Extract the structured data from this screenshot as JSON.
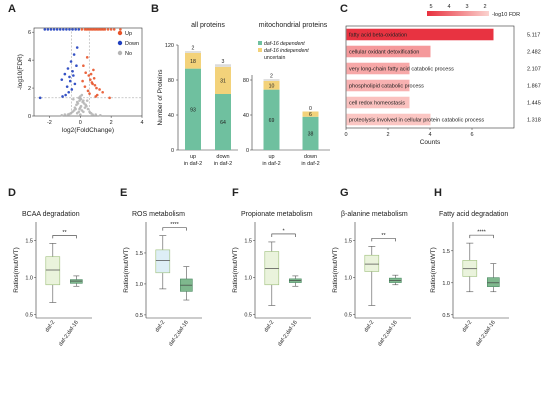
{
  "panels": {
    "A": "A",
    "B": "B",
    "C": "C",
    "D": "D",
    "E": "E",
    "F": "F",
    "G": "G",
    "H": "H"
  },
  "chart_data": [
    {
      "panel": "A",
      "type": "scatter",
      "title": "",
      "xlabel": "log2(FoldChange)",
      "ylabel": "-log10(FDR)",
      "xlim": [
        -3,
        4
      ],
      "ylim": [
        0,
        6.3
      ],
      "xticks": [
        "-2",
        "0",
        "2",
        "4"
      ],
      "yticks": [
        "0",
        "2",
        "4",
        "6"
      ],
      "legend_position": "top-right",
      "legend": [
        {
          "label": "Up",
          "color": "#e8542a"
        },
        {
          "label": "Down",
          "color": "#1f3fbf"
        },
        {
          "label": "No",
          "color": "#b5b5b5"
        }
      ],
      "series": [
        {
          "name": "Up",
          "color": "#e8542a",
          "x": [
            0.1,
            0.3,
            0.4,
            0.5,
            0.6,
            0.7,
            0.8,
            0.9,
            1.0,
            1.1,
            1.2,
            1.3,
            1.4,
            1.5,
            1.6,
            1.8,
            2.0,
            2.2,
            2.6,
            0.2,
            0.35,
            0.55,
            0.65,
            0.75,
            0.95,
            1.05,
            1.25,
            1.45,
            0.45,
            0.85,
            0.15,
            0.5,
            0.7,
            0.9,
            1.1,
            0.3,
            0.6,
            0.8,
            1.0,
            1.9
          ],
          "y": [
            6.2,
            6.2,
            6.2,
            6.2,
            6.2,
            6.2,
            6.2,
            6.2,
            6.2,
            6.2,
            6.2,
            6.2,
            6.2,
            6.2,
            6.2,
            6.2,
            6.2,
            6.2,
            6.2,
            3.6,
            3.1,
            2.9,
            2.6,
            2.4,
            2.2,
            2.0,
            1.9,
            1.7,
            4.2,
            3.3,
            2.5,
            1.8,
            3.0,
            2.7,
            1.5,
            2.1,
            1.6,
            2.3,
            1.4,
            1.3
          ]
        },
        {
          "name": "Down",
          "color": "#1f3fbf",
          "x": [
            -0.1,
            -0.3,
            -0.5,
            -0.7,
            -0.9,
            -1.1,
            -1.3,
            -1.5,
            -1.7,
            -1.9,
            -2.1,
            -2.3,
            -0.2,
            -0.4,
            -0.6,
            -0.8,
            -1.0,
            -1.2,
            -0.45,
            -0.65,
            -0.85,
            -0.25,
            -0.55,
            -0.75,
            -0.95,
            -1.15,
            -0.35,
            -2.6,
            -0.5,
            -0.7
          ],
          "y": [
            6.2,
            6.2,
            6.2,
            6.2,
            6.2,
            6.2,
            6.2,
            6.2,
            6.2,
            6.2,
            6.2,
            6.2,
            4.9,
            4.4,
            3.9,
            3.4,
            3.0,
            2.6,
            2.9,
            2.5,
            2.1,
            3.6,
            1.9,
            1.7,
            1.5,
            1.4,
            2.3,
            1.3,
            3.2,
            2.8
          ]
        },
        {
          "name": "No",
          "color": "#b5b5b5",
          "x": [
            -0.2,
            -0.1,
            0.0,
            0.1,
            0.2,
            -0.3,
            0.3,
            -0.4,
            0.4,
            -0.5,
            0.5,
            -0.6,
            0.6,
            -0.15,
            0.15,
            -0.05,
            0.05,
            -0.25,
            0.25,
            -0.35,
            0.35,
            0.0,
            -0.1,
            0.1,
            -0.2,
            0.2,
            0.0,
            -0.7,
            0.7,
            -0.8,
            0.8,
            -1.0,
            1.0,
            -1.2,
            1.3,
            -0.45,
            0.45,
            0.05,
            -0.05,
            0.0
          ],
          "y": [
            0.2,
            0.3,
            0.1,
            0.4,
            0.3,
            0.5,
            0.6,
            0.4,
            0.7,
            0.3,
            0.5,
            0.2,
            0.3,
            0.9,
            1.0,
            1.1,
            1.2,
            0.8,
            0.9,
            0.6,
            0.8,
            1.4,
            1.3,
            1.5,
            1.0,
            1.1,
            0.6,
            0.15,
            0.2,
            0.1,
            0.1,
            0.1,
            0.1,
            0.05,
            0.05,
            1.2,
            1.1,
            0.7,
            0.5,
            1.25
          ]
        }
      ]
    },
    {
      "panel": "B",
      "type": "bar",
      "stacked": true,
      "ylabel": "Number of Proteins",
      "ylim": [
        0,
        120
      ],
      "yticks": [
        "0",
        "40",
        "80",
        "120"
      ],
      "subplots": [
        {
          "subtitle": "all proteins",
          "categories": [
            "up\nin daf-2",
            "down\nin daf-2"
          ],
          "series": [
            {
              "name": "daf-16 dependent",
              "color": "#6fc09f",
              "values": [
                93,
                64
              ],
              "labels": [
                "93",
                "64"
              ]
            },
            {
              "name": "daf-16 independent",
              "color": "#f3d27a",
              "values": [
                18,
                31
              ],
              "labels": [
                "18",
                "31"
              ]
            },
            {
              "name": "uncertain",
              "color": "#dcdcdc",
              "values": [
                2,
                3
              ],
              "labels": [
                "2",
                "3"
              ]
            }
          ]
        },
        {
          "subtitle": "mitochondrial proteins",
          "categories": [
            "up\nin daf-2",
            "down\nin daf-2"
          ],
          "series": [
            {
              "name": "daf-16 dependent",
              "color": "#6fc09f",
              "values": [
                69,
                38
              ],
              "labels": [
                "69",
                "38"
              ]
            },
            {
              "name": "daf-16 independent",
              "color": "#f3d27a",
              "values": [
                10,
                6
              ],
              "labels": [
                "10",
                "6"
              ]
            },
            {
              "name": "uncertain",
              "color": "#dcdcdc",
              "values": [
                2,
                0
              ],
              "labels": [
                "2",
                "0"
              ]
            }
          ]
        }
      ],
      "legend": [
        {
          "label": "daf-16 dependent",
          "color": "#6fc09f"
        },
        {
          "label": "daf-16 independent",
          "color": "#f3d27a"
        },
        {
          "label": "uncertain",
          "color": "#dcdcdc"
        }
      ]
    },
    {
      "panel": "C",
      "type": "bar",
      "orientation": "horizontal",
      "xlabel": "Counts",
      "xlim": [
        0,
        8
      ],
      "xticks": [
        "0",
        "2",
        "4",
        "6"
      ],
      "colorbar_title": "-log10 FDR",
      "colorbar_ticks": [
        "5",
        "4",
        "3",
        "2"
      ],
      "categories": [
        "fatty acid beta-oxidation",
        "cellular oxidant detoxification",
        "very long-chain fatty acid catabolic process",
        "phospholipid catabolic process",
        "cell redox homeostasis",
        "proteolysis involved in cellular protein catabolic process"
      ],
      "values": [
        7,
        4,
        3,
        3,
        3,
        4
      ],
      "fdr": [
        5.117,
        2.482,
        2.107,
        1.867,
        1.445,
        1.318
      ],
      "fdr_labels": [
        "5.117",
        "2.482",
        "2.107",
        "1.867",
        "1.445",
        "1.318"
      ]
    },
    {
      "panel": "D",
      "type": "box",
      "title": "BCAA degradation",
      "ylabel": "Ratios(mut/WT)",
      "yticks": [
        "0.5",
        "1.0",
        "1.5"
      ],
      "ylim": [
        0.45,
        1.75
      ],
      "sig": "**",
      "categories": [
        "daf-2",
        "daf-2;daf-16"
      ],
      "boxes": [
        {
          "whislo": 0.66,
          "q1": 0.9,
          "med": 1.1,
          "q3": 1.28,
          "whishi": 1.46,
          "color": "#eaf3dc"
        },
        {
          "whislo": 0.88,
          "q1": 0.92,
          "med": 0.95,
          "q3": 0.97,
          "whishi": 1.02,
          "color": "#7fb88e"
        }
      ]
    },
    {
      "panel": "E",
      "type": "box",
      "title": "ROS metabolism",
      "ylabel": "Ratios(mut/WT)",
      "yticks": [
        "0.5",
        "1.0",
        "1.5"
      ],
      "ylim": [
        0.45,
        2.0
      ],
      "sig": "****",
      "categories": [
        "daf-2",
        "daf-2;daf-16"
      ],
      "boxes": [
        {
          "whislo": 0.92,
          "q1": 1.18,
          "med": 1.38,
          "q3": 1.55,
          "whishi": 1.78,
          "color": "#ddeef6"
        },
        {
          "whislo": 0.74,
          "q1": 0.88,
          "med": 0.98,
          "q3": 1.08,
          "whishi": 1.28,
          "color": "#7fb88e"
        }
      ]
    },
    {
      "panel": "F",
      "type": "box",
      "title": "Propionate metabolism",
      "ylabel": "Ratios(mut/WT)",
      "yticks": [
        "0.5",
        "1.0",
        "1.5"
      ],
      "ylim": [
        0.45,
        1.75
      ],
      "sig": "*",
      "categories": [
        "daf-2",
        "daf-2;daf-16"
      ],
      "boxes": [
        {
          "whislo": 0.62,
          "q1": 0.9,
          "med": 1.12,
          "q3": 1.35,
          "whishi": 1.48,
          "color": "#eaf3dc"
        },
        {
          "whislo": 0.88,
          "q1": 0.93,
          "med": 0.96,
          "q3": 0.98,
          "whishi": 1.02,
          "color": "#7fb88e"
        }
      ]
    },
    {
      "panel": "G",
      "type": "box",
      "title": "β-alanine metabolism",
      "ylabel": "Ratios(mut/WT)",
      "yticks": [
        "0.5",
        "1.0",
        "1.5"
      ],
      "ylim": [
        0.45,
        1.75
      ],
      "sig": "**",
      "categories": [
        "daf-2",
        "daf-2;daf-16"
      ],
      "boxes": [
        {
          "whislo": 0.62,
          "q1": 1.08,
          "med": 1.18,
          "q3": 1.3,
          "whishi": 1.42,
          "color": "#eaf3dc"
        },
        {
          "whislo": 0.9,
          "q1": 0.93,
          "med": 0.96,
          "q3": 0.99,
          "whishi": 1.03,
          "color": "#7fb88e"
        }
      ]
    },
    {
      "panel": "H",
      "type": "box",
      "title": "Fatty acid degradation",
      "ylabel": "Ratios(mut/WT)",
      "yticks": [
        "0.5",
        "1.0",
        "1.5"
      ],
      "ylim": [
        0.45,
        1.95
      ],
      "sig": "****",
      "categories": [
        "daf-2",
        "daf-2;daf-16"
      ],
      "boxes": [
        {
          "whislo": 0.86,
          "q1": 1.1,
          "med": 1.22,
          "q3": 1.35,
          "whishi": 1.62,
          "color": "#eaf3dc"
        },
        {
          "whislo": 0.86,
          "q1": 0.94,
          "med": 1.0,
          "q3": 1.08,
          "whishi": 1.3,
          "color": "#7fb88e"
        }
      ]
    }
  ]
}
